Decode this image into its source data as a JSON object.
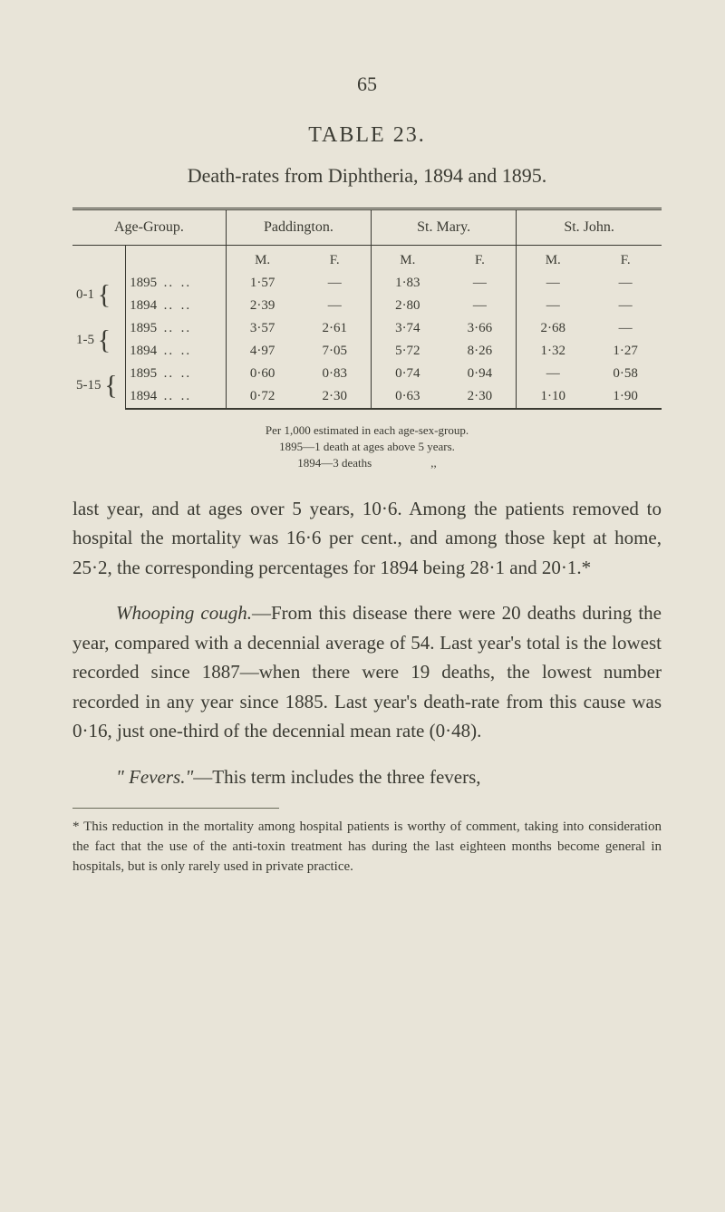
{
  "page_number": "65",
  "table": {
    "label": "TABLE 23.",
    "caption": "Death-rates from Diphtheria, 1894 and 1895.",
    "headers": {
      "age": "Age-Group.",
      "loc1": "Paddington.",
      "loc2": "St. Mary.",
      "loc3": "St. John."
    },
    "subheads": {
      "m": "M.",
      "f": "F."
    },
    "rows": [
      {
        "range": "0-1",
        "year": "1895",
        "p_m": "1·57",
        "p_f": "—",
        "sm_m": "1·83",
        "sm_f": "—",
        "sj_m": "—",
        "sj_f": "—"
      },
      {
        "range": "",
        "year": "1894",
        "p_m": "2·39",
        "p_f": "—",
        "sm_m": "2·80",
        "sm_f": "—",
        "sj_m": "—",
        "sj_f": "—"
      },
      {
        "range": "1-5",
        "year": "1895",
        "p_m": "3·57",
        "p_f": "2·61",
        "sm_m": "3·74",
        "sm_f": "3·66",
        "sj_m": "2·68",
        "sj_f": "—"
      },
      {
        "range": "",
        "year": "1894",
        "p_m": "4·97",
        "p_f": "7·05",
        "sm_m": "5·72",
        "sm_f": "8·26",
        "sj_m": "1·32",
        "sj_f": "1·27"
      },
      {
        "range": "5-15",
        "year": "1895",
        "p_m": "0·60",
        "p_f": "0·83",
        "sm_m": "0·74",
        "sm_f": "0·94",
        "sj_m": "—",
        "sj_f": "0·58"
      },
      {
        "range": "",
        "year": "1894",
        "p_m": "0·72",
        "p_f": "2·30",
        "sm_m": "0·63",
        "sm_f": "2·30",
        "sj_m": "1·10",
        "sj_f": "1·90"
      }
    ],
    "notes": {
      "line1": "Per 1,000 estimated in each age-sex-group.",
      "line2": "1895—1 death at ages above 5 years.",
      "line3": "1894—3 deaths     ,,"
    }
  },
  "paragraphs": {
    "p1": "last year, and at ages over 5 years, 10·6. Among the patients removed to hospital the mortality was 16·6 per cent., and among those kept at home, 25·2, the corresponding percentages for 1894 being 28·1 and 20·1.*",
    "p2_lead": "Whooping cough.",
    "p2_body": "—From this disease there were 20 deaths during the year, compared with a decennial average of 54. Last year's total is the lowest recorded since 1887—when there were 19 deaths, the lowest number recorded in any year since 1885. Last year's death-rate from this cause was 0·16, just one-third of the decennial mean rate (0·48).",
    "p3_lead": "\" Fevers.\"",
    "p3_body": "—This term includes the three fevers,"
  },
  "footnote": "* This reduction in the mortality among hospital patients is worthy of comment, taking into consideration the fact that the use of the anti-toxin treatment has during the last eighteen months become general in hospitals, but is only rarely used in private practice."
}
